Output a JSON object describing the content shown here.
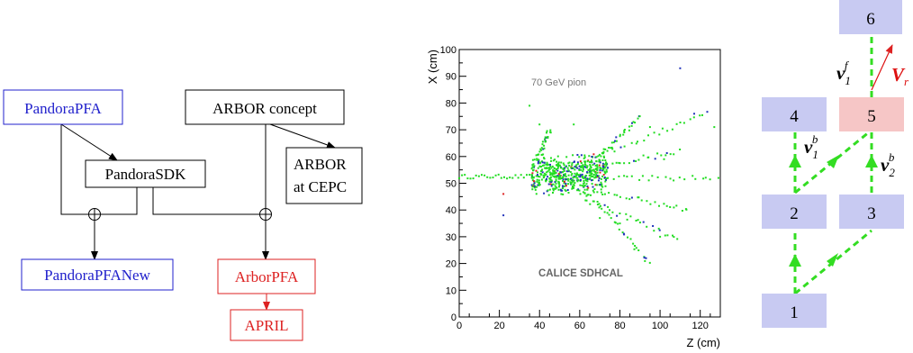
{
  "flow": {
    "nodes": {
      "pandora_pfa": "PandoraPFA",
      "arbor_concept": "ARBOR concept",
      "pandora_sdk": "PandoraSDK",
      "arbor_cepc_line1": "ARBOR",
      "arbor_cepc_line2": "at CEPC",
      "pandora_pfa_new": "PandoraPFANew",
      "arbor_pfa": "ArborPFA",
      "april": "APRIL"
    },
    "merge_symbol": "⊕",
    "colors": {
      "blue": "#2222cc",
      "red": "#dd2222",
      "black": "#000000"
    }
  },
  "scatter": {
    "annotation_energy": "70 GeV pion",
    "annotation_detector": "CALICE SDHCAL",
    "xlabel": "Z (cm)",
    "ylabel": "X (cm)",
    "x_ticks": [
      "0",
      "20",
      "40",
      "60",
      "80",
      "100",
      "120"
    ],
    "y_ticks": [
      "0",
      "10",
      "20",
      "30",
      "40",
      "50",
      "60",
      "70",
      "80",
      "90",
      "100"
    ],
    "xlim": [
      0,
      130
    ],
    "ylim": [
      0,
      100
    ],
    "colors": {
      "green": "#22dd22",
      "blue": "#2233bb",
      "red": "#dd2222"
    }
  },
  "tree": {
    "nodes": [
      "1",
      "2",
      "3",
      "4",
      "5",
      "6"
    ],
    "labels": {
      "v1f": "v",
      "v1f_sub": "1",
      "v1f_sup": "f",
      "vr": "V",
      "vr_sub": "r",
      "v1b": "v",
      "v1b_sub": "1",
      "v1b_sup": "b",
      "v2b": "v",
      "v2b_sub": "2",
      "v2b_sup": "b"
    },
    "colors": {
      "node": "#c8caf2",
      "highlight": "#f6c6c6",
      "edge": "#33dd22",
      "vector": "#dd1111"
    }
  }
}
